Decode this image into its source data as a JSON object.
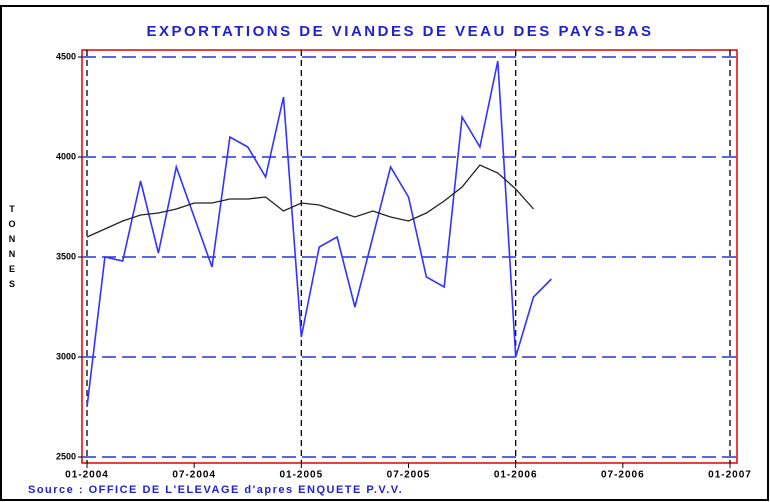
{
  "chart_data": {
    "type": "line",
    "title": "EXPORTATIONS DE VIANDES DE VEAU DES PAYS-BAS",
    "y_label": "TONNES",
    "source": "Source : OFFICE DE L'ELEVAGE d'apres ENQUETE P.V.V.",
    "x": [
      "2004-01",
      "2004-02",
      "2004-03",
      "2004-04",
      "2004-05",
      "2004-06",
      "2004-07",
      "2004-08",
      "2004-09",
      "2004-10",
      "2004-11",
      "2004-12",
      "2005-01",
      "2005-02",
      "2005-03",
      "2005-04",
      "2005-05",
      "2005-06",
      "2005-07",
      "2005-08",
      "2005-09",
      "2005-10",
      "2005-11",
      "2005-12",
      "2006-01",
      "2006-02",
      "2006-03"
    ],
    "series": [
      {
        "color": "#3333ff",
        "values": [
          2750,
          3500,
          3480,
          3880,
          3520,
          3950,
          3700,
          3450,
          4100,
          4050,
          3900,
          4300,
          3100,
          3550,
          3600,
          3250,
          3600,
          3950,
          3800,
          3400,
          3350,
          4200,
          4050,
          4480,
          3000,
          3300,
          3390
        ]
      },
      {
        "color": "#222222",
        "values": [
          3600,
          3640,
          3680,
          3710,
          3720,
          3740,
          3770,
          3770,
          3790,
          3790,
          3800,
          3730,
          3770,
          3760,
          3730,
          3700,
          3730,
          3700,
          3680,
          3720,
          3780,
          3850,
          3960,
          3920,
          3840,
          3740,
          null
        ]
      }
    ],
    "xlim": [
      "2004-01",
      "2007-01"
    ],
    "xticks": [
      {
        "value": "2004-01",
        "label": "01-2004"
      },
      {
        "value": "2004-07",
        "label": "07-2004"
      },
      {
        "value": "2005-01",
        "label": "01-2005"
      },
      {
        "value": "2005-07",
        "label": "07-2005"
      },
      {
        "value": "2006-01",
        "label": "01-2006"
      },
      {
        "value": "2006-07",
        "label": "07-2006"
      },
      {
        "value": "2007-01",
        "label": "01-2007"
      }
    ],
    "ylim": [
      2500,
      4500
    ],
    "yticks": [
      2500,
      3000,
      3500,
      4000,
      4500
    ],
    "grid": true
  }
}
